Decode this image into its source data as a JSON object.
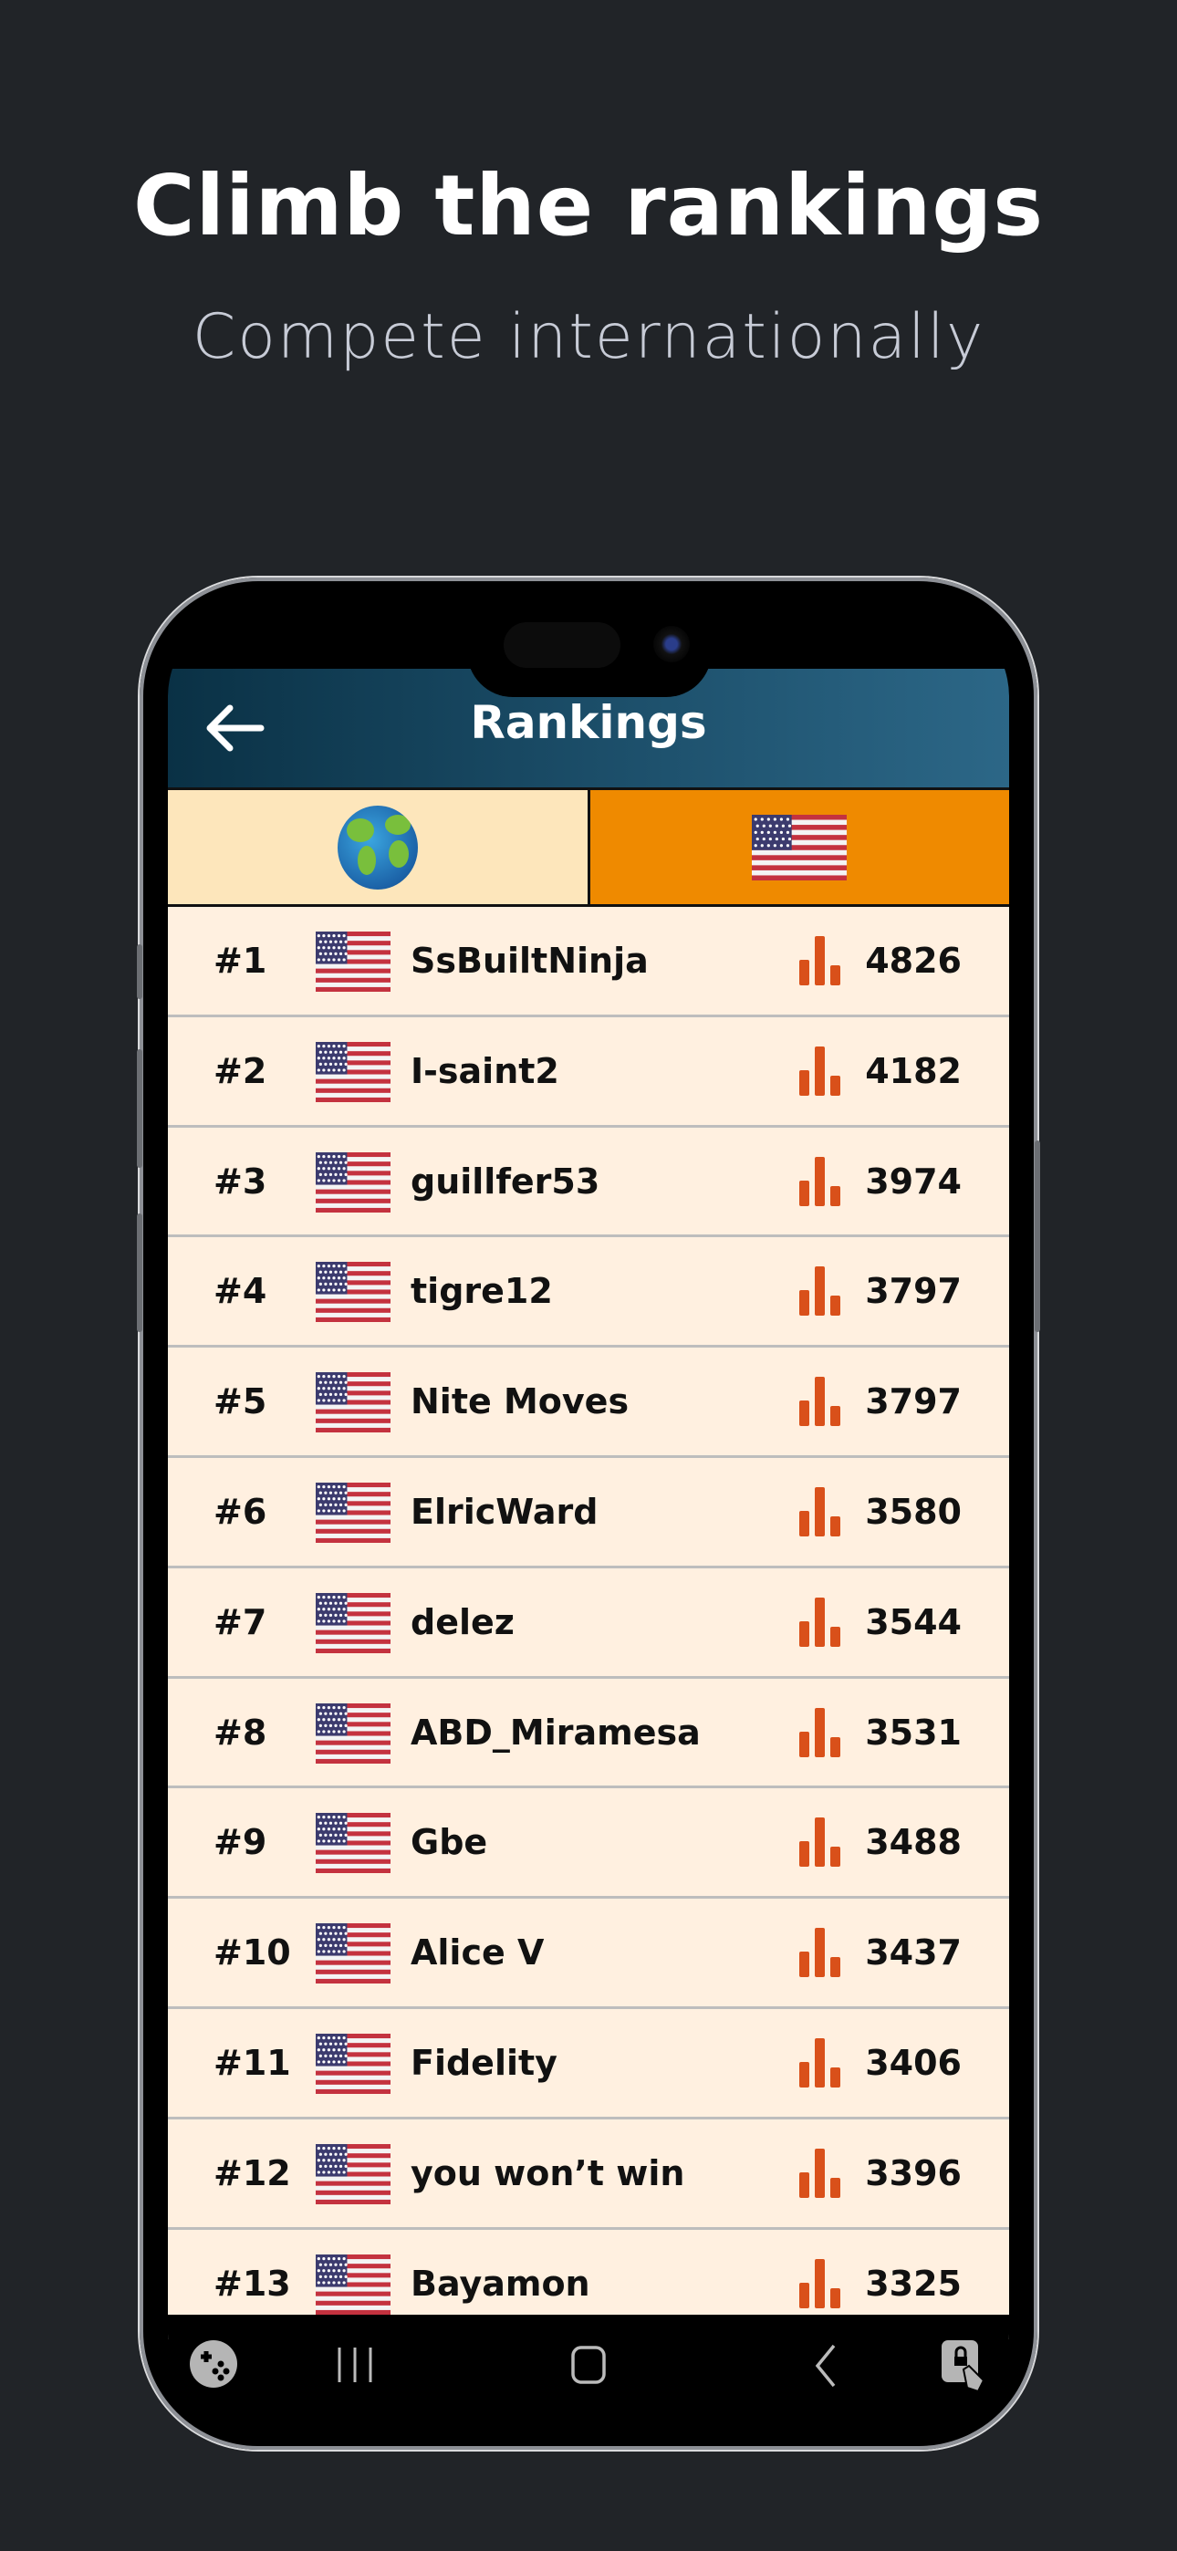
{
  "promo": {
    "title": "Climb the rankings",
    "subtitle": "Compete internationally"
  },
  "app": {
    "title": "Rankings",
    "back_icon": "arrow-left-icon",
    "tabs": [
      {
        "id": "world",
        "icon": "globe-icon",
        "selected": false
      },
      {
        "id": "usa",
        "icon": "us-flag-icon",
        "selected": true
      }
    ],
    "colors": {
      "header_start": "#0a3145",
      "header_end": "#2c6787",
      "tab_world": "#fde6bb",
      "tab_selected": "#ef8a00",
      "row_bg": "#fff0e0",
      "score_icon": "#d9501a"
    },
    "rankings": [
      {
        "rank": "#1",
        "country": "us-flag-icon",
        "name": "SsBuiltNinja",
        "score": "4826"
      },
      {
        "rank": "#2",
        "country": "us-flag-icon",
        "name": "I-saint2",
        "score": "4182"
      },
      {
        "rank": "#3",
        "country": "us-flag-icon",
        "name": "guillfer53",
        "score": "3974"
      },
      {
        "rank": "#4",
        "country": "us-flag-icon",
        "name": "tigre12",
        "score": "3797"
      },
      {
        "rank": "#5",
        "country": "us-flag-icon",
        "name": "Nite Moves",
        "score": "3797"
      },
      {
        "rank": "#6",
        "country": "us-flag-icon",
        "name": "ElricWard",
        "score": "3580"
      },
      {
        "rank": "#7",
        "country": "us-flag-icon",
        "name": "delez",
        "score": "3544"
      },
      {
        "rank": "#8",
        "country": "us-flag-icon",
        "name": "ABD_Miramesa",
        "score": "3531"
      },
      {
        "rank": "#9",
        "country": "us-flag-icon",
        "name": "Gbe",
        "score": "3488"
      },
      {
        "rank": "#10",
        "country": "us-flag-icon",
        "name": "Alice V",
        "score": "3437"
      },
      {
        "rank": "#11",
        "country": "us-flag-icon",
        "name": "Fidelity",
        "score": "3406"
      },
      {
        "rank": "#12",
        "country": "us-flag-icon",
        "name": "you won’t win",
        "score": "3396"
      },
      {
        "rank": "#13",
        "country": "us-flag-icon",
        "name": "Bayamon",
        "score": "3325"
      }
    ]
  },
  "system_nav": {
    "icons": [
      "game-launcher-icon",
      "recents-icon",
      "home-icon",
      "back-icon",
      "touch-lock-icon"
    ]
  }
}
